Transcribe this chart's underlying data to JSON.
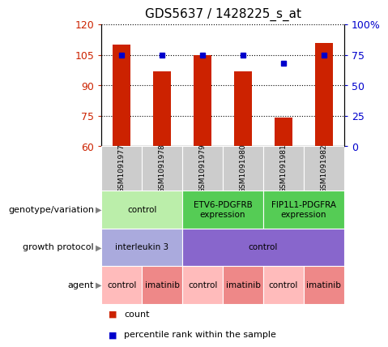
{
  "title": "GDS5637 / 1428225_s_at",
  "samples": [
    "GSM1091977",
    "GSM1091978",
    "GSM1091979",
    "GSM1091980",
    "GSM1091981",
    "GSM1091982"
  ],
  "counts": [
    110,
    97,
    105,
    97,
    74,
    111
  ],
  "percentiles": [
    75,
    75,
    75,
    75,
    68,
    75
  ],
  "ylim_left": [
    60,
    120
  ],
  "yticks_left": [
    60,
    75,
    90,
    105,
    120
  ],
  "ylim_right": [
    0,
    100
  ],
  "yticks_right": [
    0,
    25,
    50,
    75,
    100
  ],
  "bar_color": "#cc2200",
  "dot_color": "#0000cc",
  "grid_color": "#000000",
  "bar_width": 0.45,
  "sample_box_color": "#cccccc",
  "genotype_configs": [
    {
      "label": "control",
      "start": 0,
      "end": 2,
      "color": "#bbeeaa"
    },
    {
      "label": "ETV6-PDGFRB\nexpression",
      "start": 2,
      "end": 4,
      "color": "#55cc55"
    },
    {
      "label": "FIP1L1-PDGFRA\nexpression",
      "start": 4,
      "end": 6,
      "color": "#55cc55"
    }
  ],
  "growth_configs": [
    {
      "label": "interleukin 3",
      "start": 0,
      "end": 2,
      "color": "#aaaadd"
    },
    {
      "label": "control",
      "start": 2,
      "end": 6,
      "color": "#8866cc"
    }
  ],
  "agent_configs": [
    {
      "label": "control",
      "start": 0,
      "end": 1,
      "color": "#ffbbbb"
    },
    {
      "label": "imatinib",
      "start": 1,
      "end": 2,
      "color": "#ee8888"
    },
    {
      "label": "control",
      "start": 2,
      "end": 3,
      "color": "#ffbbbb"
    },
    {
      "label": "imatinib",
      "start": 3,
      "end": 4,
      "color": "#ee8888"
    },
    {
      "label": "control",
      "start": 4,
      "end": 5,
      "color": "#ffbbbb"
    },
    {
      "label": "imatinib",
      "start": 5,
      "end": 6,
      "color": "#ee8888"
    }
  ],
  "row_labels": [
    {
      "text": "genotype/variation",
      "row": 2.5
    },
    {
      "text": "growth protocol",
      "row": 1.5
    },
    {
      "text": "agent",
      "row": 0.5
    }
  ],
  "legend_items": [
    {
      "label": "count",
      "color": "#cc2200"
    },
    {
      "label": "percentile rank within the sample",
      "color": "#0000cc"
    }
  ]
}
